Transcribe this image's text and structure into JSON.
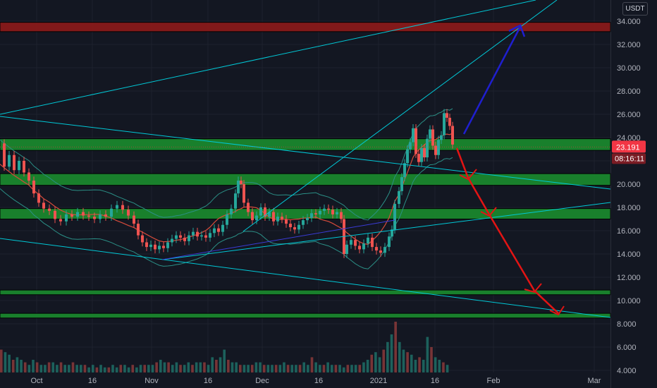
{
  "currency_button": "USDT",
  "price_badge": {
    "price": "23.191",
    "countdown": "08:16:11"
  },
  "chart_data": {
    "type": "candlestick",
    "y_axis": {
      "ticks": [
        "34.000",
        "32.000",
        "30.000",
        "28.000",
        "26.000",
        "24.000",
        "22.000",
        "20.000",
        "18.000",
        "16.000",
        "14.000",
        "12.000",
        "10.000",
        "8.000",
        "6.000",
        "4.000"
      ],
      "range": [
        3.8,
        35.4
      ]
    },
    "x_axis": {
      "ticks": [
        "Oct",
        "16",
        "Nov",
        "16",
        "Dec",
        "16",
        "2021",
        "16",
        "Feb",
        "Mar"
      ]
    },
    "last_price": 23.191,
    "price_series": [
      [
        0,
        23.5
      ],
      [
        6,
        21.5
      ],
      [
        13,
        22.5
      ],
      [
        20,
        21.2
      ],
      [
        27,
        22.0
      ],
      [
        34,
        21.0
      ],
      [
        41,
        20.3
      ],
      [
        48,
        19.2
      ],
      [
        55,
        18.4
      ],
      [
        62,
        17.9
      ],
      [
        70,
        17.7
      ],
      [
        78,
        17.0
      ],
      [
        86,
        16.8
      ],
      [
        94,
        17.4
      ],
      [
        102,
        17.2
      ],
      [
        110,
        17.6
      ],
      [
        118,
        17.3
      ],
      [
        126,
        17.2
      ],
      [
        134,
        17.0
      ],
      [
        142,
        17.4
      ],
      [
        150,
        17.2
      ],
      [
        158,
        17.9
      ],
      [
        166,
        18.2
      ],
      [
        174,
        17.8
      ],
      [
        182,
        17.3
      ],
      [
        190,
        16.6
      ],
      [
        196,
        15.6
      ],
      [
        202,
        15.0
      ],
      [
        208,
        14.6
      ],
      [
        214,
        14.8
      ],
      [
        220,
        14.4
      ],
      [
        226,
        14.7
      ],
      [
        232,
        14.5
      ],
      [
        238,
        15.0
      ],
      [
        244,
        15.3
      ],
      [
        250,
        15.6
      ],
      [
        256,
        15.4
      ],
      [
        262,
        15.1
      ],
      [
        268,
        15.6
      ],
      [
        274,
        15.9
      ],
      [
        280,
        15.5
      ],
      [
        286,
        15.6
      ],
      [
        292,
        15.4
      ],
      [
        298,
        15.8
      ],
      [
        304,
        16.2
      ],
      [
        310,
        15.9
      ],
      [
        316,
        16.5
      ],
      [
        322,
        17.4
      ],
      [
        328,
        17.9
      ],
      [
        334,
        19.2
      ],
      [
        338,
        20.3
      ],
      [
        342,
        20.0
      ],
      [
        346,
        18.4
      ],
      [
        352,
        17.6
      ],
      [
        358,
        16.9
      ],
      [
        364,
        17.3
      ],
      [
        370,
        18.0
      ],
      [
        376,
        17.2
      ],
      [
        382,
        17.6
      ],
      [
        388,
        16.8
      ],
      [
        394,
        17.2
      ],
      [
        400,
        17.0
      ],
      [
        406,
        16.6
      ],
      [
        412,
        16.3
      ],
      [
        418,
        16.1
      ],
      [
        424,
        16.5
      ],
      [
        430,
        16.9
      ],
      [
        436,
        17.1
      ],
      [
        442,
        17.5
      ],
      [
        448,
        17.4
      ],
      [
        454,
        17.7
      ],
      [
        460,
        17.9
      ],
      [
        466,
        17.8
      ],
      [
        472,
        17.4
      ],
      [
        478,
        17.6
      ],
      [
        484,
        17.0
      ],
      [
        488,
        14.0
      ],
      [
        492,
        14.8
      ],
      [
        498,
        15.2
      ],
      [
        504,
        14.7
      ],
      [
        510,
        14.4
      ],
      [
        516,
        14.9
      ],
      [
        522,
        15.4
      ],
      [
        528,
        14.6
      ],
      [
        534,
        14.3
      ],
      [
        540,
        14.1
      ],
      [
        546,
        14.6
      ],
      [
        552,
        15.5
      ],
      [
        556,
        16.1
      ],
      [
        560,
        18.3
      ],
      [
        566,
        19.4
      ],
      [
        570,
        20.6
      ],
      [
        574,
        21.8
      ],
      [
        578,
        23.0
      ],
      [
        582,
        23.6
      ],
      [
        586,
        24.8
      ],
      [
        590,
        22.6
      ],
      [
        594,
        21.9
      ],
      [
        598,
        23.1
      ],
      [
        602,
        22.3
      ],
      [
        606,
        23.9
      ],
      [
        610,
        24.7
      ],
      [
        614,
        23.3
      ],
      [
        618,
        22.5
      ],
      [
        622,
        23.8
      ],
      [
        626,
        24.2
      ],
      [
        630,
        26.1
      ],
      [
        634,
        25.7
      ],
      [
        638,
        25.0
      ],
      [
        642,
        23.4
      ]
    ],
    "volume_series": [
      9,
      8,
      7,
      5,
      6,
      5,
      4,
      3,
      5,
      4,
      3,
      3,
      4,
      4,
      3,
      4,
      3,
      3,
      4,
      3,
      3,
      3,
      2,
      3,
      2,
      3,
      2,
      2,
      3,
      2,
      3,
      3,
      2,
      3,
      2,
      3,
      3,
      3,
      3,
      4,
      5,
      4,
      4,
      3,
      4,
      3,
      3,
      4,
      3,
      4,
      4,
      4,
      3,
      6,
      5,
      6,
      9,
      5,
      4,
      4,
      3,
      3,
      3,
      3,
      4,
      4,
      3,
      3,
      3,
      3,
      3,
      4,
      3,
      3,
      3,
      3,
      4,
      3,
      6,
      4,
      3,
      3,
      4,
      3,
      3,
      3,
      2,
      3,
      3,
      3,
      3,
      4,
      5,
      7,
      8,
      6,
      9,
      12,
      15,
      20,
      12,
      9,
      8,
      7,
      5,
      6,
      5,
      14,
      10,
      6,
      5,
      4,
      3
    ],
    "zones": [
      {
        "price_from": 33.1,
        "price_to": 33.9,
        "color": "#8f1a1a"
      },
      {
        "price_from": 22.9,
        "price_to": 23.9,
        "color": "#1a8c2e"
      },
      {
        "price_from": 19.9,
        "price_to": 20.9,
        "color": "#1a8c2e"
      },
      {
        "price_from": 17.0,
        "price_to": 17.9,
        "color": "#1a8c2e"
      },
      {
        "price_from": 10.5,
        "price_to": 10.9,
        "color": "#1a8c2e"
      },
      {
        "price_from": 8.5,
        "price_to": 8.9,
        "color": "#1a8c2e"
      }
    ],
    "colors": {
      "background": "#131722",
      "up": "#26a69a",
      "down": "#ef5350",
      "trendline": "#00c8d6",
      "projection_up": "#1f1fcf",
      "projection_down": "#e31414",
      "text": "#b2b5be",
      "price_badge": "#f23645"
    }
  }
}
